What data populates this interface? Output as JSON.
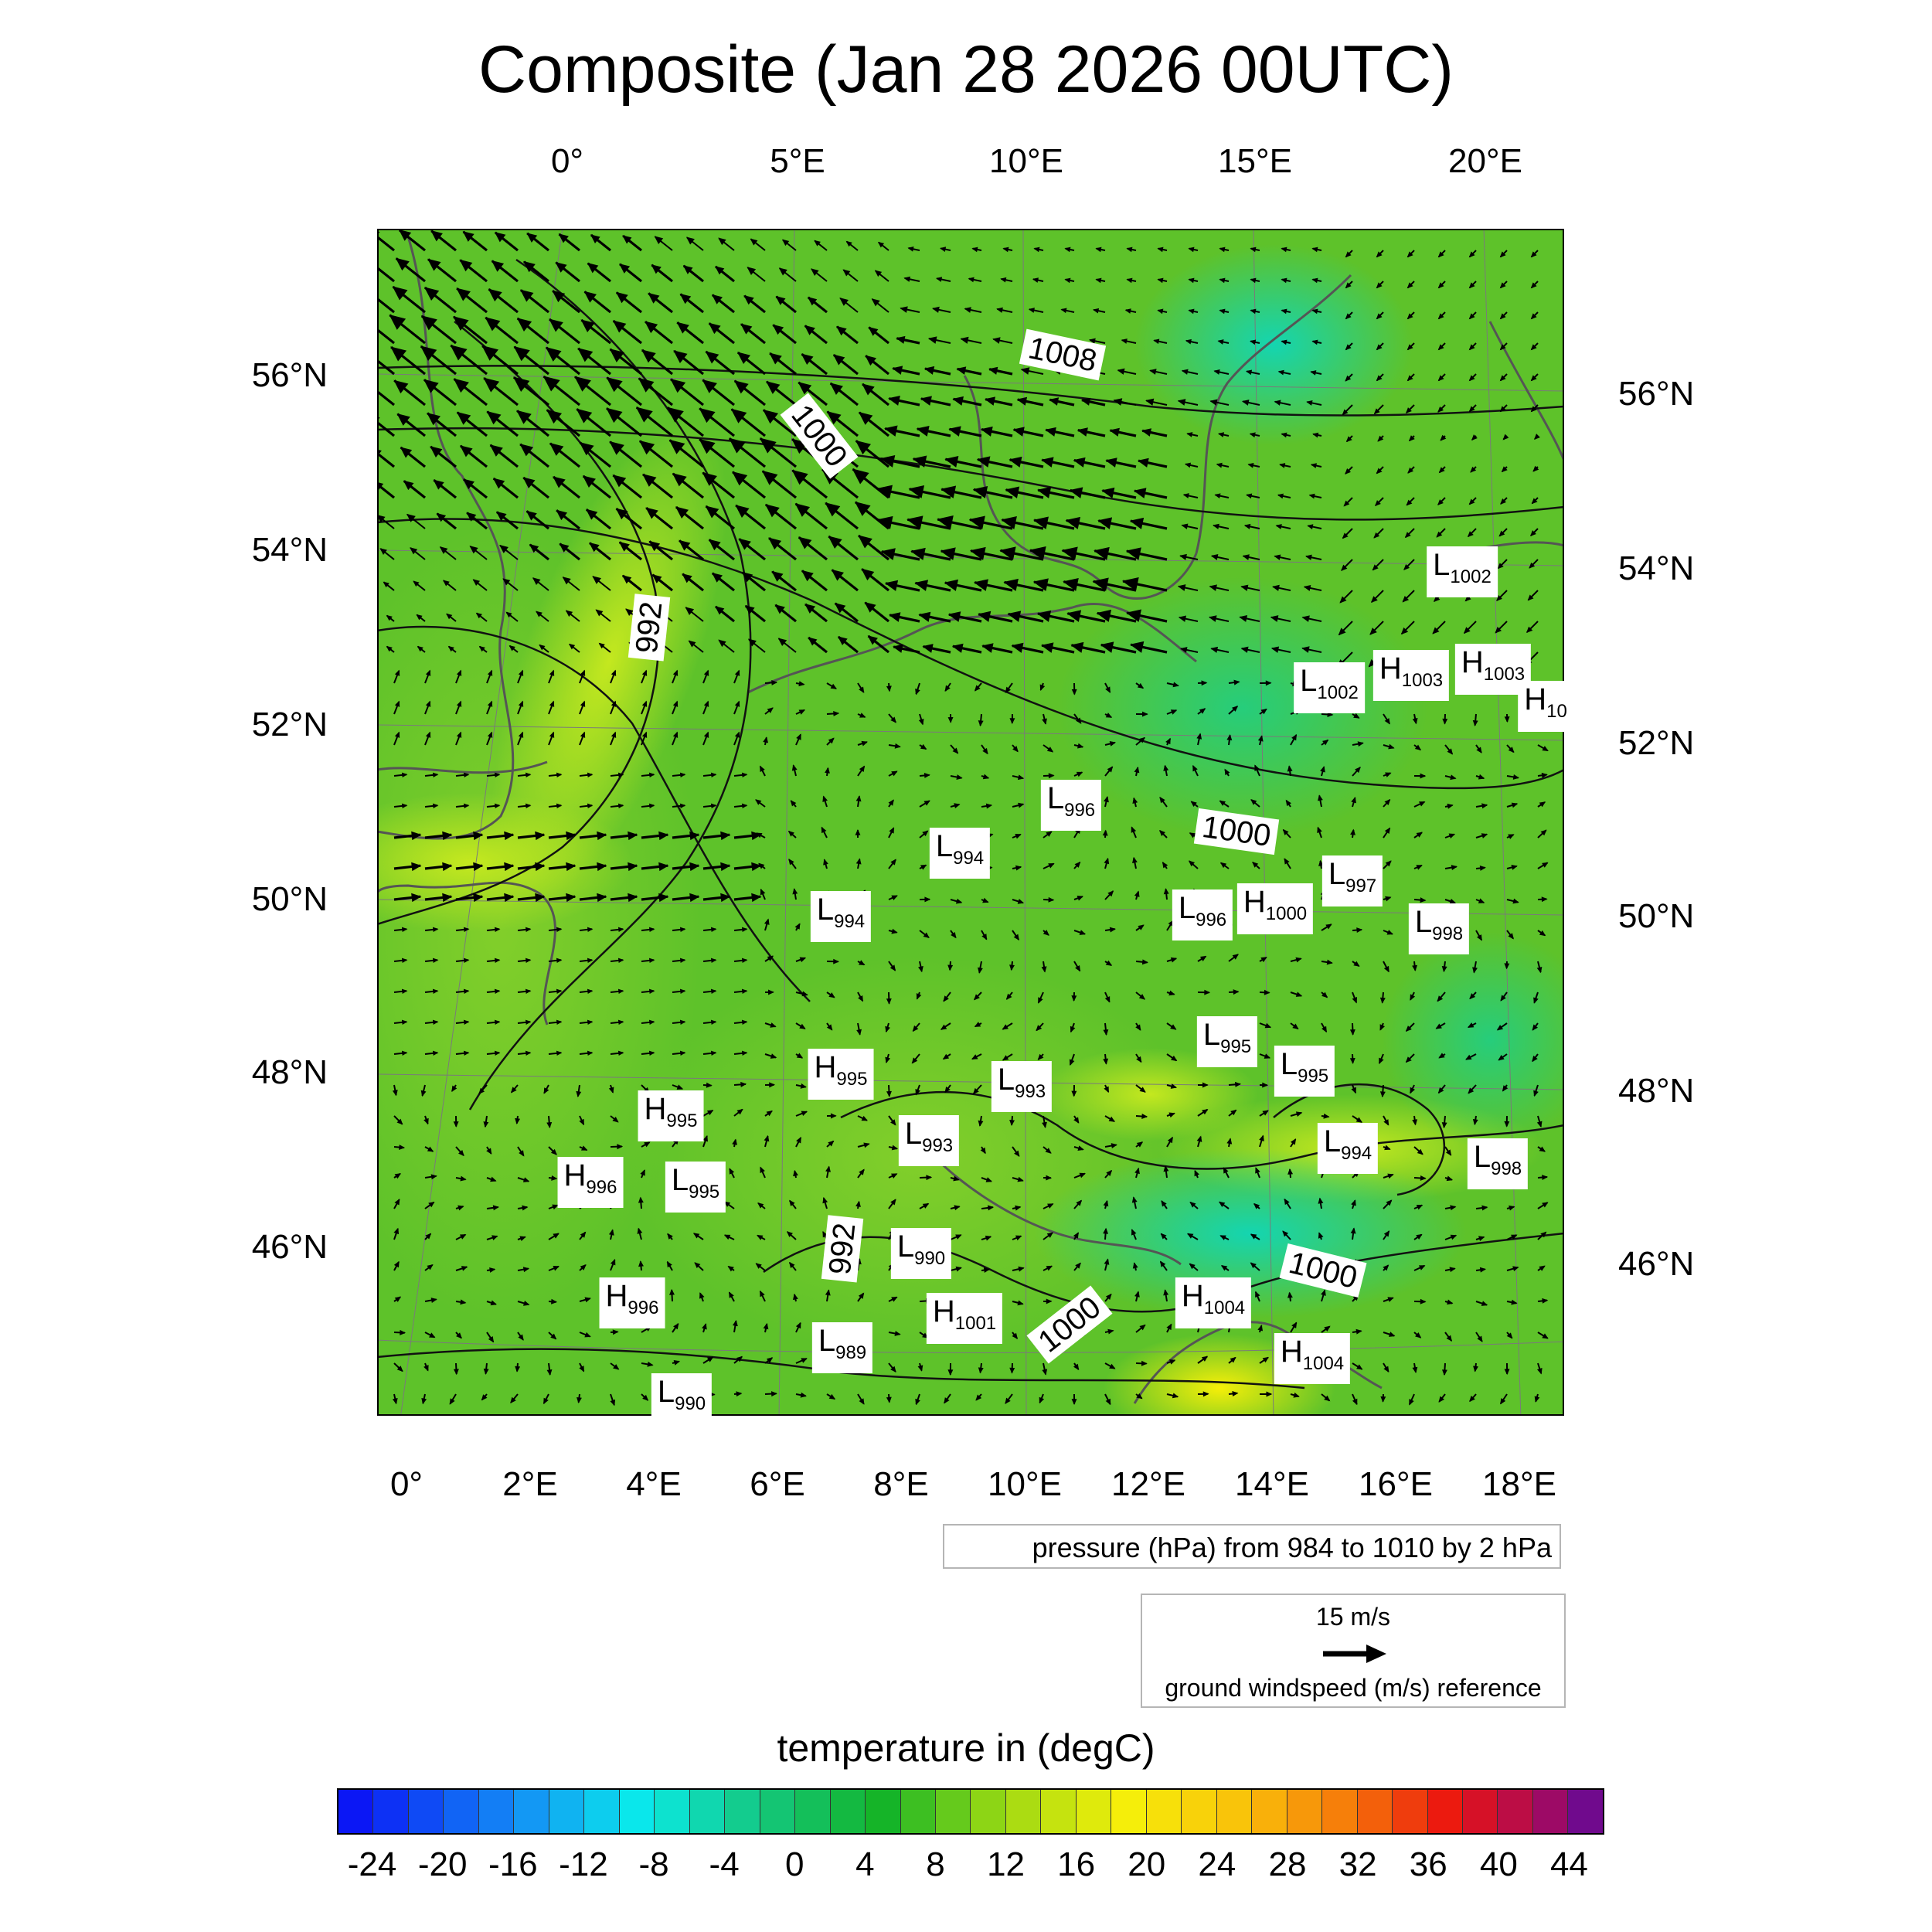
{
  "title": "Composite (Jan 28 2026 00UTC)",
  "top_lon_labels": [
    "0°",
    "5°E",
    "10°E",
    "15°E",
    "20°E"
  ],
  "bottom_lon_labels": [
    "0°",
    "2°E",
    "4°E",
    "6°E",
    "8°E",
    "10°E",
    "12°E",
    "14°E",
    "16°E",
    "18°E"
  ],
  "left_lat_labels": [
    "56°N",
    "54°N",
    "52°N",
    "50°N",
    "48°N",
    "46°N"
  ],
  "right_lat_labels": [
    "56°N",
    "54°N",
    "52°N",
    "50°N",
    "48°N",
    "46°N"
  ],
  "contour_labels": [
    "1008",
    "1000",
    "992",
    "1000",
    "1000",
    "1000",
    "992"
  ],
  "pressure_centers": [
    {
      "type": "L",
      "value": "1002"
    },
    {
      "type": "L",
      "value": "1002"
    },
    {
      "type": "H",
      "value": "1003"
    },
    {
      "type": "H",
      "value": "1003"
    },
    {
      "type": "H",
      "value": "10"
    },
    {
      "type": "L",
      "value": "996"
    },
    {
      "type": "L",
      "value": "994"
    },
    {
      "type": "L",
      "value": "994"
    },
    {
      "type": "L",
      "value": "997"
    },
    {
      "type": "L",
      "value": "996"
    },
    {
      "type": "H",
      "value": "1000"
    },
    {
      "type": "L",
      "value": "998"
    },
    {
      "type": "L",
      "value": "995"
    },
    {
      "type": "L",
      "value": "995"
    },
    {
      "type": "H",
      "value": "995"
    },
    {
      "type": "L",
      "value": "993"
    },
    {
      "type": "H",
      "value": "995"
    },
    {
      "type": "L",
      "value": "993"
    },
    {
      "type": "L",
      "value": "994"
    },
    {
      "type": "L",
      "value": "998"
    },
    {
      "type": "H",
      "value": "996"
    },
    {
      "type": "L",
      "value": "995"
    },
    {
      "type": "L",
      "value": "990"
    },
    {
      "type": "H",
      "value": "996"
    },
    {
      "type": "H",
      "value": "1001"
    },
    {
      "type": "H",
      "value": "1004"
    },
    {
      "type": "L",
      "value": "989"
    },
    {
      "type": "H",
      "value": "1004"
    },
    {
      "type": "L",
      "value": "990"
    }
  ],
  "pressure_info": "pressure (hPa) from 984 to 1010 by 2 hPa",
  "wind_ref": {
    "value_label": "15 m/s",
    "description": "ground windspeed (m/s) reference"
  },
  "colorbar": {
    "title": "temperature in (degC)",
    "tick_labels": [
      "-24",
      "-20",
      "-16",
      "-12",
      "-8",
      "-4",
      "0",
      "4",
      "8",
      "12",
      "16",
      "20",
      "24",
      "28",
      "32",
      "36",
      "40",
      "44"
    ],
    "min": -26,
    "max": 46,
    "step": 2
  },
  "colors": {
    "map_base": "#5ec22a",
    "cold": "#0fd1a6",
    "warm": "#c7e81a",
    "hot": "#f2ee0a",
    "coast": "#555555",
    "contour": "#111111"
  }
}
